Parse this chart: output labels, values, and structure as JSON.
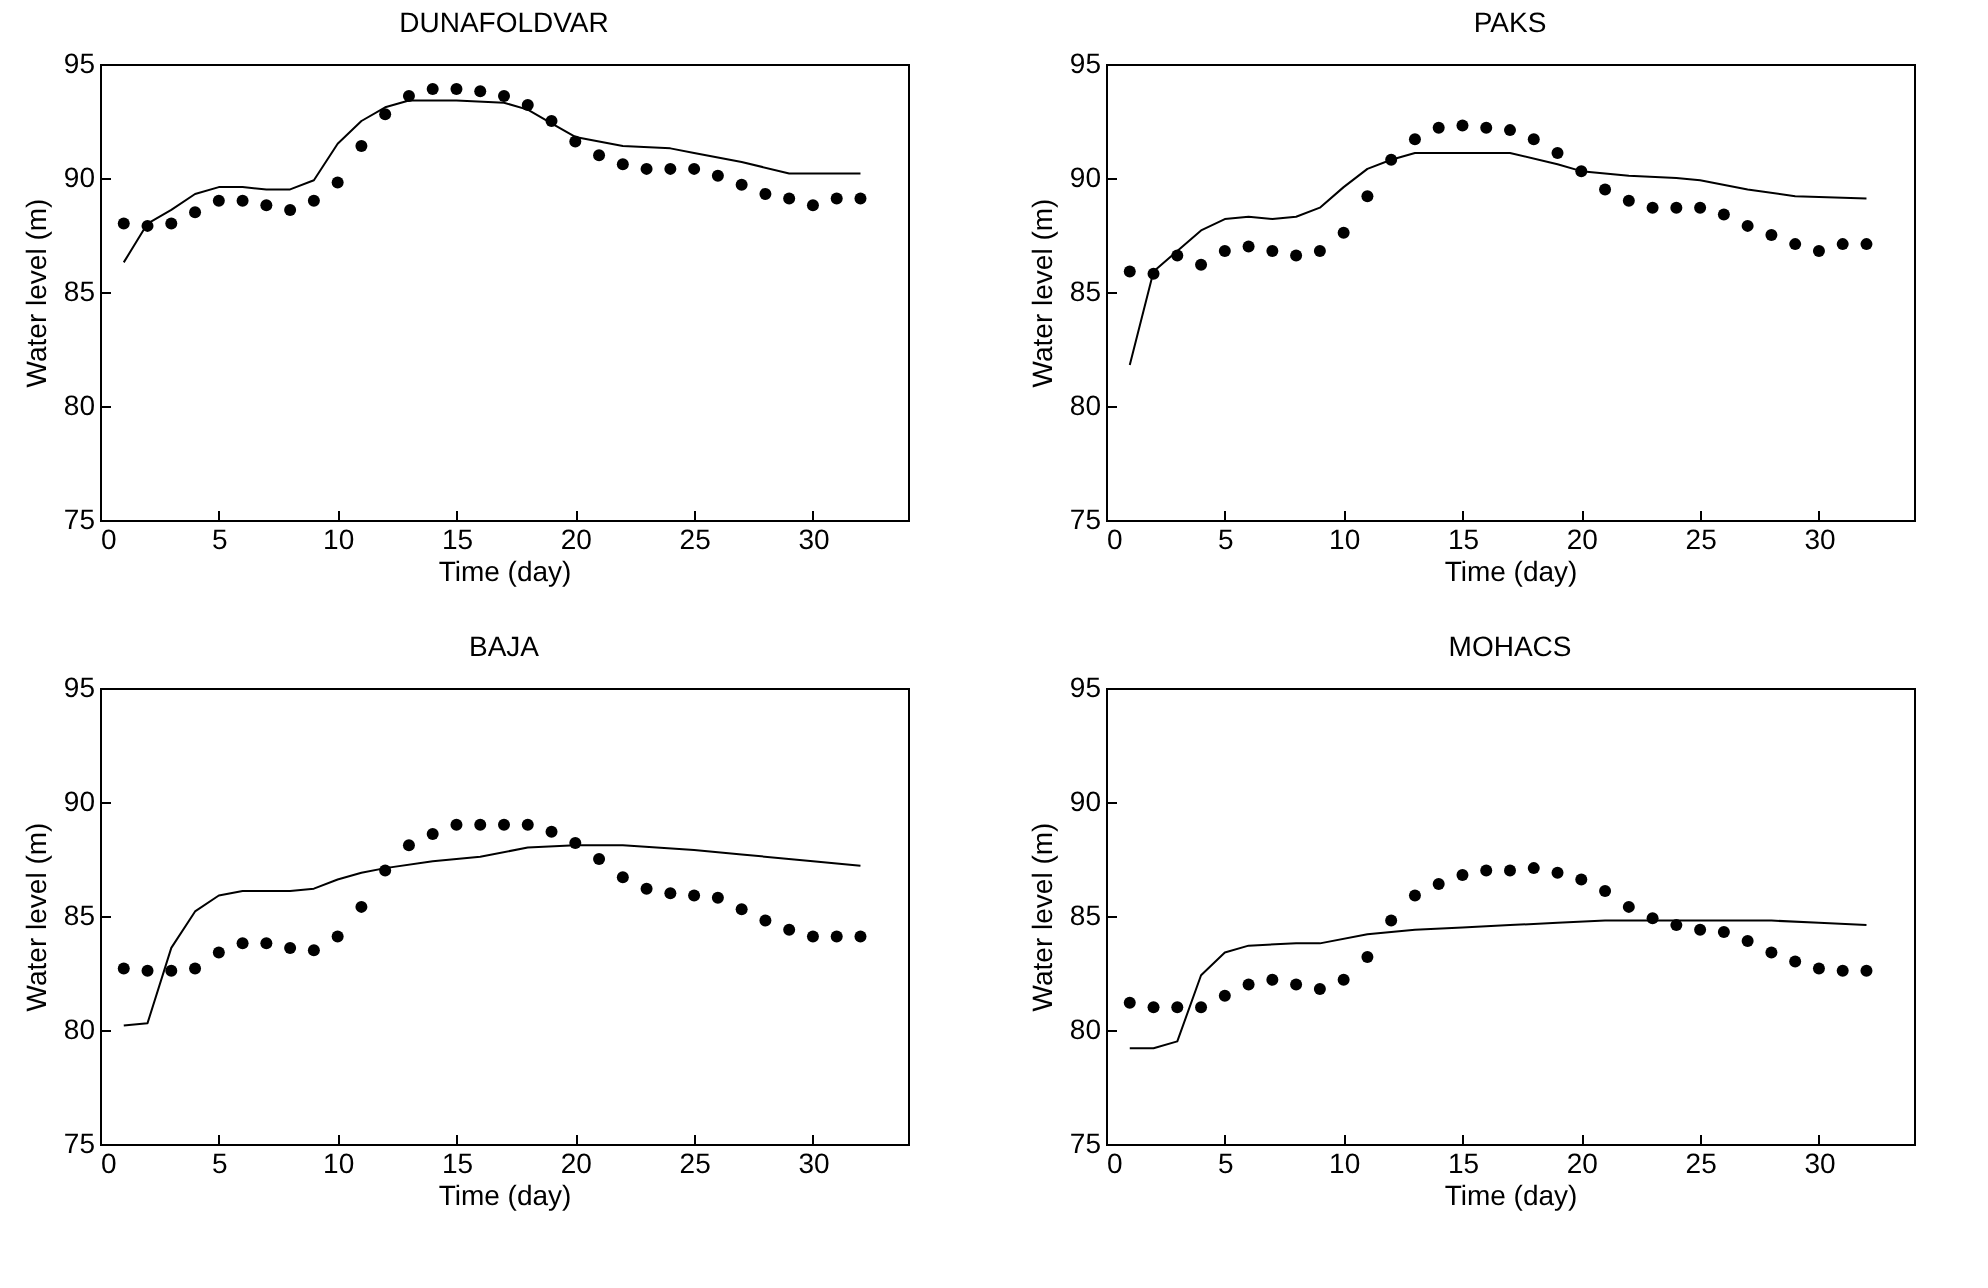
{
  "chart_data": [
    {
      "type": "scatter",
      "title": "DUNAFOLDVAR",
      "xlabel": "Time (day)",
      "ylabel": "Water level (m)",
      "xlim": [
        0,
        34
      ],
      "ylim": [
        75,
        95
      ],
      "xticks": [
        0,
        5,
        10,
        15,
        20,
        25,
        30
      ],
      "yticks": [
        75,
        80,
        85,
        90,
        95
      ],
      "grid": false,
      "series": [
        {
          "marker": "circle",
          "color": "#000000",
          "x": [
            1,
            2,
            3,
            4,
            5,
            6,
            7,
            8,
            9,
            10,
            11,
            12,
            13,
            14,
            15,
            16,
            17,
            18,
            19,
            20,
            21,
            22,
            23,
            24,
            25,
            26,
            27,
            28,
            29,
            30,
            31,
            32
          ],
          "values": [
            88.0,
            87.9,
            88.0,
            88.5,
            89.0,
            89.0,
            88.8,
            88.6,
            89.0,
            89.8,
            91.4,
            92.8,
            93.6,
            93.9,
            93.9,
            93.8,
            93.6,
            93.2,
            92.5,
            91.6,
            91.0,
            90.6,
            90.4,
            90.4,
            90.4,
            90.1,
            89.7,
            89.3,
            89.1,
            88.8,
            89.1,
            89.1
          ]
        },
        {
          "type": "line",
          "line_style": "solid",
          "color": "#000000",
          "x": [
            1,
            2,
            3,
            4,
            5,
            6,
            7,
            8,
            9,
            10,
            11,
            12,
            13,
            15,
            17,
            18,
            19,
            20,
            22,
            24,
            25,
            27,
            29,
            32
          ],
          "values": [
            86.3,
            88.0,
            88.6,
            89.3,
            89.6,
            89.6,
            89.5,
            89.5,
            89.9,
            91.5,
            92.5,
            93.1,
            93.4,
            93.4,
            93.3,
            93.0,
            92.4,
            91.8,
            91.4,
            91.3,
            91.1,
            90.7,
            90.2,
            90.2
          ]
        }
      ]
    },
    {
      "type": "scatter",
      "title": "PAKS",
      "xlabel": "Time (day)",
      "ylabel": "Water level (m)",
      "xlim": [
        0,
        34
      ],
      "ylim": [
        75,
        95
      ],
      "xticks": [
        0,
        5,
        10,
        15,
        20,
        25,
        30
      ],
      "yticks": [
        75,
        80,
        85,
        90,
        95
      ],
      "grid": false,
      "series": [
        {
          "marker": "circle",
          "color": "#000000",
          "x": [
            1,
            2,
            3,
            4,
            5,
            6,
            7,
            8,
            9,
            10,
            11,
            12,
            13,
            14,
            15,
            16,
            17,
            18,
            19,
            20,
            21,
            22,
            23,
            24,
            25,
            26,
            27,
            28,
            29,
            30,
            31,
            32
          ],
          "values": [
            85.9,
            85.8,
            86.6,
            86.2,
            86.8,
            87.0,
            86.8,
            86.6,
            86.8,
            87.6,
            89.2,
            90.8,
            91.7,
            92.2,
            92.3,
            92.2,
            92.1,
            91.7,
            91.1,
            90.3,
            89.5,
            89.0,
            88.7,
            88.7,
            88.7,
            88.4,
            87.9,
            87.5,
            87.1,
            86.8,
            87.1,
            87.1
          ]
        },
        {
          "type": "line",
          "line_style": "solid",
          "color": "#000000",
          "x": [
            1,
            2,
            3,
            4,
            5,
            6,
            7,
            8,
            9,
            10,
            11,
            12,
            13,
            15,
            17,
            19,
            20,
            22,
            24,
            25,
            27,
            29,
            32
          ],
          "values": [
            81.8,
            85.9,
            86.8,
            87.7,
            88.2,
            88.3,
            88.2,
            88.3,
            88.7,
            89.6,
            90.4,
            90.8,
            91.1,
            91.1,
            91.1,
            90.6,
            90.3,
            90.1,
            90.0,
            89.9,
            89.5,
            89.2,
            89.1
          ]
        }
      ]
    },
    {
      "type": "scatter",
      "title": "BAJA",
      "xlabel": "Time (day)",
      "ylabel": "Water level (m)",
      "xlim": [
        0,
        34
      ],
      "ylim": [
        75,
        95
      ],
      "xticks": [
        0,
        5,
        10,
        15,
        20,
        25,
        30
      ],
      "yticks": [
        75,
        80,
        85,
        90,
        95
      ],
      "grid": false,
      "series": [
        {
          "marker": "circle",
          "color": "#000000",
          "x": [
            1,
            2,
            3,
            4,
            5,
            6,
            7,
            8,
            9,
            10,
            11,
            12,
            13,
            14,
            15,
            16,
            17,
            18,
            19,
            20,
            21,
            22,
            23,
            24,
            25,
            26,
            27,
            28,
            29,
            30,
            31,
            32
          ],
          "values": [
            82.7,
            82.6,
            82.6,
            82.7,
            83.4,
            83.8,
            83.8,
            83.6,
            83.5,
            84.1,
            85.4,
            87.0,
            88.1,
            88.6,
            89.0,
            89.0,
            89.0,
            89.0,
            88.7,
            88.2,
            87.5,
            86.7,
            86.2,
            86.0,
            85.9,
            85.8,
            85.3,
            84.8,
            84.4,
            84.1,
            84.1,
            84.1
          ]
        },
        {
          "type": "line",
          "line_style": "solid",
          "color": "#000000",
          "x": [
            1,
            2,
            3,
            4,
            5,
            6,
            8,
            9,
            10,
            11,
            12,
            14,
            16,
            18,
            20,
            22,
            25,
            27,
            30,
            32
          ],
          "values": [
            80.2,
            80.3,
            83.6,
            85.2,
            85.9,
            86.1,
            86.1,
            86.2,
            86.6,
            86.9,
            87.1,
            87.4,
            87.6,
            88.0,
            88.1,
            88.1,
            87.9,
            87.7,
            87.4,
            87.2
          ]
        }
      ]
    },
    {
      "type": "scatter",
      "title": "MOHACS",
      "xlabel": "Time (day)",
      "ylabel": "Water level (m)",
      "xlim": [
        0,
        34
      ],
      "ylim": [
        75,
        95
      ],
      "xticks": [
        0,
        5,
        10,
        15,
        20,
        25,
        30
      ],
      "yticks": [
        75,
        80,
        85,
        90,
        95
      ],
      "grid": false,
      "series": [
        {
          "marker": "circle",
          "color": "#000000",
          "x": [
            1,
            2,
            3,
            4,
            5,
            6,
            7,
            8,
            9,
            10,
            11,
            12,
            13,
            14,
            15,
            16,
            17,
            18,
            19,
            20,
            21,
            22,
            23,
            24,
            25,
            26,
            27,
            28,
            29,
            30,
            31,
            32
          ],
          "values": [
            81.2,
            81.0,
            81.0,
            81.0,
            81.5,
            82.0,
            82.2,
            82.0,
            81.8,
            82.2,
            83.2,
            84.8,
            85.9,
            86.4,
            86.8,
            87.0,
            87.0,
            87.1,
            86.9,
            86.6,
            86.1,
            85.4,
            84.9,
            84.6,
            84.4,
            84.3,
            83.9,
            83.4,
            83.0,
            82.7,
            82.6,
            82.6
          ]
        },
        {
          "type": "line",
          "line_style": "solid",
          "color": "#000000",
          "x": [
            1,
            2,
            3,
            4,
            5,
            6,
            8,
            9,
            11,
            13,
            15,
            17,
            19,
            21,
            25,
            28,
            30,
            32
          ],
          "values": [
            79.2,
            79.2,
            79.5,
            82.4,
            83.4,
            83.7,
            83.8,
            83.8,
            84.2,
            84.4,
            84.5,
            84.6,
            84.7,
            84.8,
            84.8,
            84.8,
            84.7,
            84.6
          ]
        }
      ]
    }
  ]
}
